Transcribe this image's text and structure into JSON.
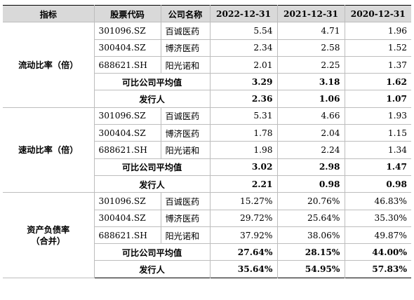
{
  "header": {
    "indicator": "指标",
    "stock_code": "股票代码",
    "company_name": "公司名称",
    "years": [
      "2022-12-31",
      "2021-12-31",
      "2020-12-31"
    ]
  },
  "sections": [
    {
      "indicator": "流动比率（倍）",
      "companies": [
        {
          "code": "301096.SZ",
          "name": "百诚医药",
          "values": [
            "5.54",
            "4.71",
            "1.96"
          ]
        },
        {
          "code": "300404.SZ",
          "name": "博济医药",
          "values": [
            "2.34",
            "2.58",
            "1.52"
          ]
        },
        {
          "code": "688621.SH",
          "name": "阳光诺和",
          "values": [
            "2.01",
            "2.25",
            "1.37"
          ]
        }
      ],
      "average": {
        "label": "可比公司平均值",
        "values": [
          "3.29",
          "3.18",
          "1.62"
        ]
      },
      "issuer": {
        "label": "发行人",
        "values": [
          "2.36",
          "1.06",
          "1.07"
        ]
      }
    },
    {
      "indicator": "速动比率（倍）",
      "companies": [
        {
          "code": "301096.SZ",
          "name": "百诚医药",
          "values": [
            "5.31",
            "4.66",
            "1.93"
          ]
        },
        {
          "code": "300404.SZ",
          "name": "博济医药",
          "values": [
            "1.78",
            "2.04",
            "1.15"
          ]
        },
        {
          "code": "688621.SH",
          "name": "阳光诺和",
          "values": [
            "1.98",
            "2.24",
            "1.34"
          ]
        }
      ],
      "average": {
        "label": "可比公司平均值",
        "values": [
          "3.02",
          "2.98",
          "1.47"
        ]
      },
      "issuer": {
        "label": "发行人",
        "values": [
          "2.21",
          "0.98",
          "0.98"
        ]
      }
    },
    {
      "indicator": "资产负债率（合并）",
      "indicator_line1": "资产负债率",
      "indicator_line2": "（合并）",
      "companies": [
        {
          "code": "301096.SZ",
          "name": "百诚医药",
          "values": [
            "15.27%",
            "20.76%",
            "46.83%"
          ]
        },
        {
          "code": "300404.SZ",
          "name": "博济医药",
          "values": [
            "29.72%",
            "25.64%",
            "35.30%"
          ]
        },
        {
          "code": "688621.SH",
          "name": "阳光诺和",
          "values": [
            "37.92%",
            "38.06%",
            "49.87%"
          ]
        }
      ],
      "average": {
        "label": "可比公司平均值",
        "values": [
          "27.64%",
          "28.15%",
          "44.00%"
        ]
      },
      "issuer": {
        "label": "发行人",
        "values": [
          "35.64%",
          "54.95%",
          "57.83%"
        ]
      }
    }
  ]
}
